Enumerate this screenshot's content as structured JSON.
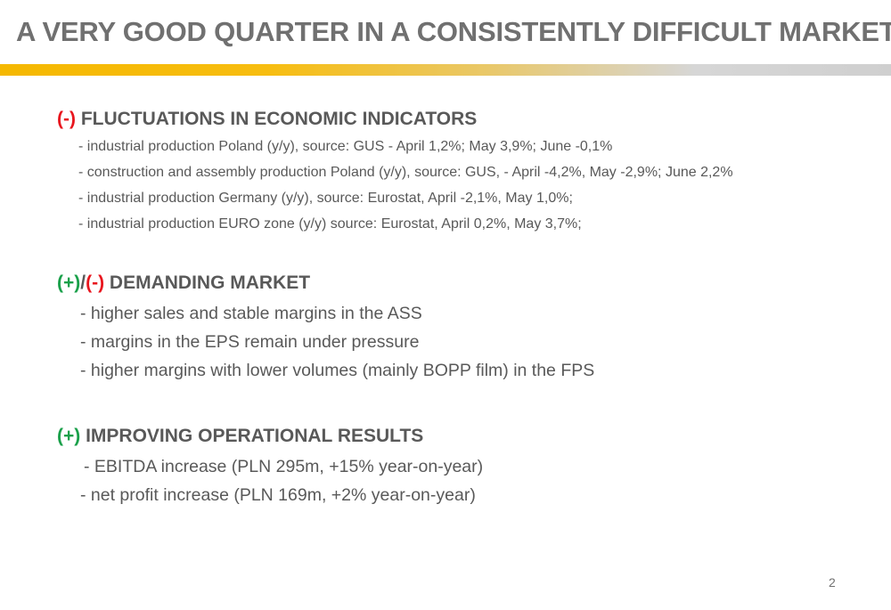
{
  "slide": {
    "title": "A VERY GOOD QUARTER IN A CONSISTENTLY DIFFICULT MARKET",
    "page_number": "2",
    "accent_color": "#F5B800"
  },
  "sections": [
    {
      "marker_prefix": "(-)",
      "marker_prefix_color": "#E8161E",
      "heading": "FLUCTUATIONS IN ECONOMIC INDICATORS",
      "items": [
        "- industrial production Poland (y/y), source: GUS -  April 1,2%; May 3,9%; June -0,1%",
        "- construction and assembly production Poland (y/y), source: GUS, - April -4,2%, May -2,9%; June 2,2%",
        "- industrial production Germany (y/y), source: Eurostat, April -2,1%, May 1,0%;",
        "- industrial production EURO zone (y/y) source: Eurostat, April 0,2%, May 3,7%;"
      ]
    },
    {
      "marker_positive": "(+)",
      "marker_separator": "/",
      "marker_negative": "(-)",
      "heading": "DEMANDING MARKET",
      "items": [
        "- higher sales and stable margins in the ASS",
        "- margins in the EPS remain under pressure",
        "- higher margins with lower volumes (mainly BOPP film) in the FPS"
      ]
    },
    {
      "marker_prefix": "(+)",
      "marker_prefix_color": "#1AA04A",
      "heading": "IMPROVING OPERATIONAL RESULTS",
      "items": [
        "- EBITDA increase (PLN 295m, +15% year-on-year)",
        "- net profit increase (PLN 169m, +2% year-on-year)"
      ]
    }
  ]
}
